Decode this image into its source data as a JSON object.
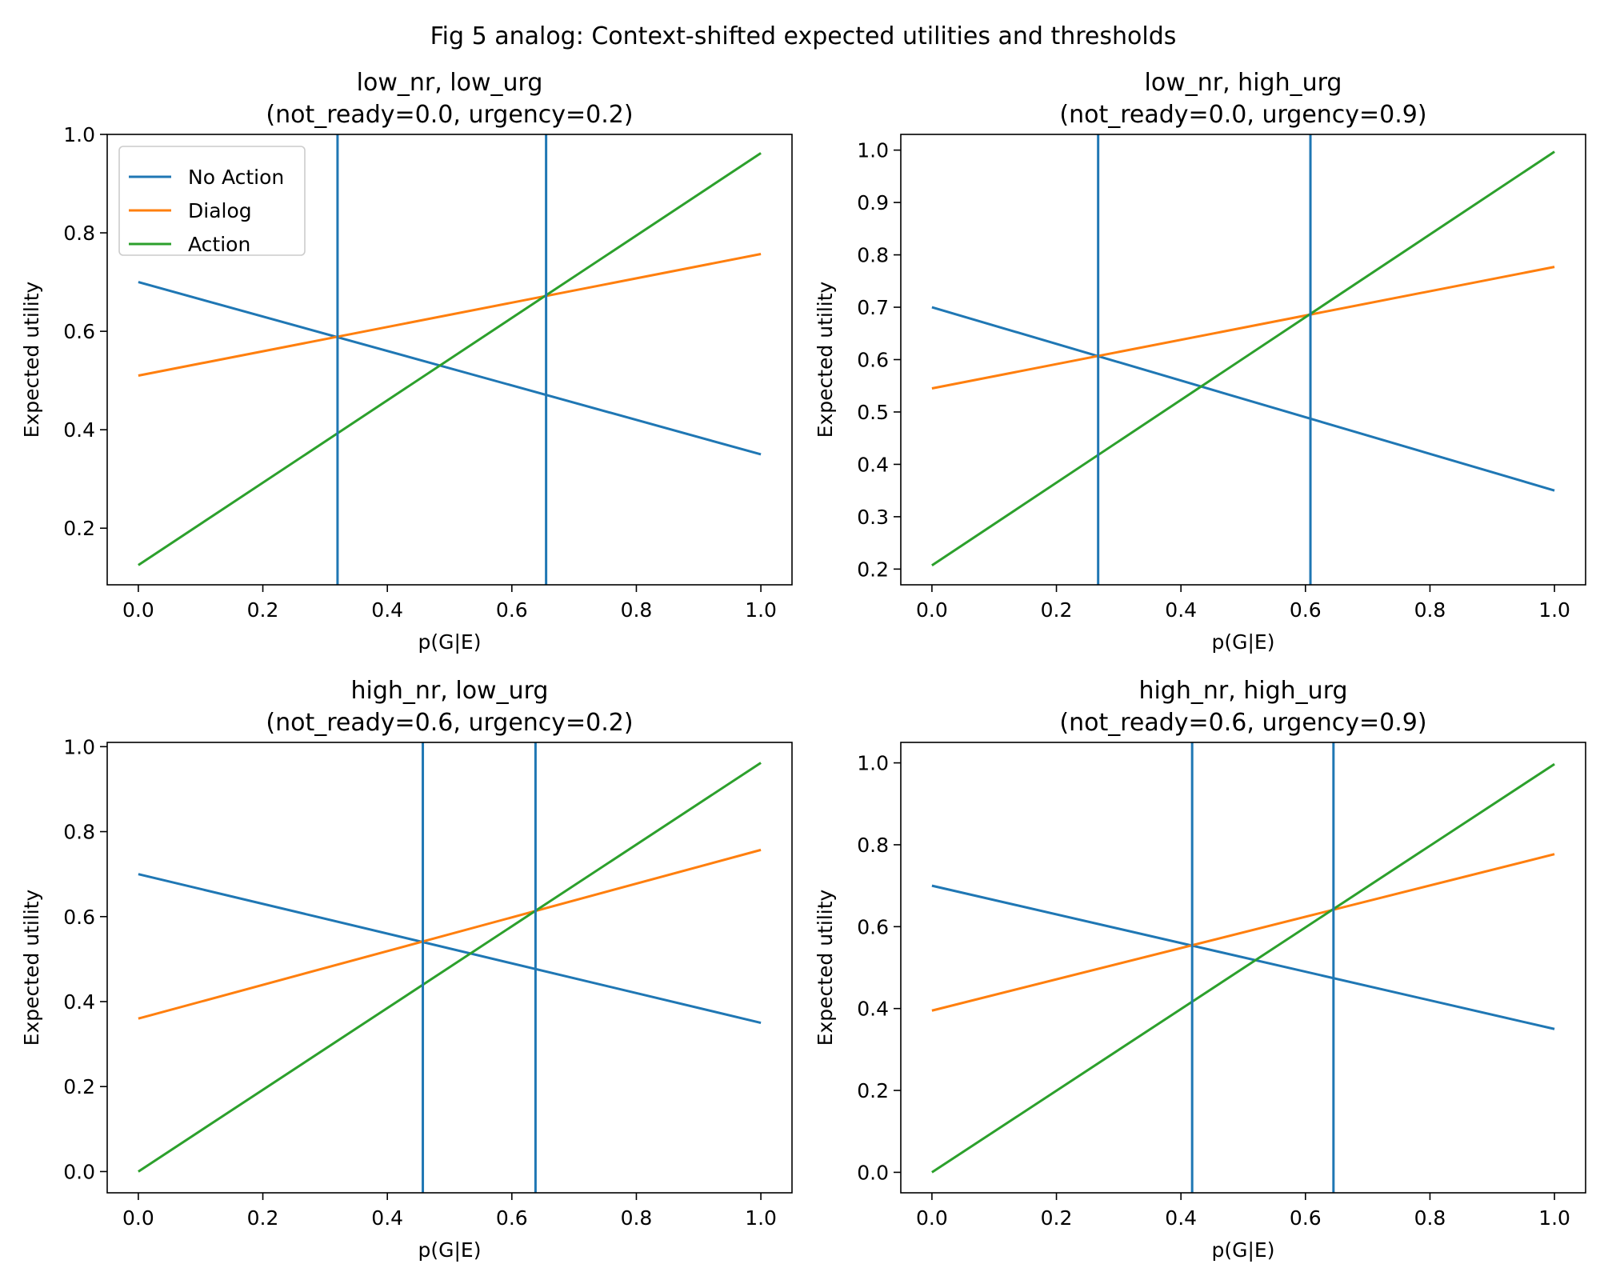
{
  "figure": {
    "title": "Fig 5 analog: Context-shifted expected utilities and thresholds"
  },
  "colors": {
    "no_action": "#1f77b4",
    "dialog": "#ff7f0e",
    "action": "#2ca02c",
    "threshold": "#1f77b4"
  },
  "chart_data": [
    {
      "type": "line",
      "title_line1": "low_nr, low_urg",
      "title_line2": "(not_ready=0.0, urgency=0.2)",
      "xlabel": "p(G|E)",
      "ylabel": "Expected utility",
      "xlim": [
        -0.05,
        1.05
      ],
      "ylim": [
        0.085,
        1.0
      ],
      "xticks": [
        "0.0",
        "0.2",
        "0.4",
        "0.6",
        "0.8",
        "1.0"
      ],
      "yticks": [
        "0.2",
        "0.4",
        "0.6",
        "0.8",
        "1.0"
      ],
      "legend": {
        "visible": true,
        "placement": "upper-left"
      },
      "series": [
        {
          "name": "No Action",
          "color_key": "no_action",
          "x": [
            0,
            1
          ],
          "y": [
            0.7,
            0.35
          ]
        },
        {
          "name": "Dialog",
          "color_key": "dialog",
          "x": [
            0,
            1
          ],
          "y": [
            0.51,
            0.757
          ]
        },
        {
          "name": "Action",
          "color_key": "action",
          "x": [
            0,
            1
          ],
          "y": [
            0.125,
            0.962
          ]
        }
      ],
      "thresholds": [
        0.32,
        0.655
      ]
    },
    {
      "type": "line",
      "title_line1": "low_nr, high_urg",
      "title_line2": "(not_ready=0.0, urgency=0.9)",
      "xlabel": "p(G|E)",
      "ylabel": "Expected utility",
      "xlim": [
        -0.05,
        1.05
      ],
      "ylim": [
        0.17,
        1.03
      ],
      "xticks": [
        "0.0",
        "0.2",
        "0.4",
        "0.6",
        "0.8",
        "1.0"
      ],
      "yticks": [
        "0.2",
        "0.3",
        "0.4",
        "0.5",
        "0.6",
        "0.7",
        "0.8",
        "0.9",
        "1.0"
      ],
      "legend": {
        "visible": false
      },
      "series": [
        {
          "name": "No Action",
          "color_key": "no_action",
          "x": [
            0,
            1
          ],
          "y": [
            0.7,
            0.35
          ]
        },
        {
          "name": "Dialog",
          "color_key": "dialog",
          "x": [
            0,
            1
          ],
          "y": [
            0.545,
            0.777
          ]
        },
        {
          "name": "Action",
          "color_key": "action",
          "x": [
            0,
            1
          ],
          "y": [
            0.207,
            0.997
          ]
        }
      ],
      "thresholds": [
        0.267,
        0.608
      ]
    },
    {
      "type": "line",
      "title_line1": "high_nr, low_urg",
      "title_line2": "(not_ready=0.6, urgency=0.2)",
      "xlabel": "p(G|E)",
      "ylabel": "Expected utility",
      "xlim": [
        -0.05,
        1.05
      ],
      "ylim": [
        -0.05,
        1.01
      ],
      "xticks": [
        "0.0",
        "0.2",
        "0.4",
        "0.6",
        "0.8",
        "1.0"
      ],
      "yticks": [
        "0.0",
        "0.2",
        "0.4",
        "0.6",
        "0.8",
        "1.0"
      ],
      "legend": {
        "visible": false
      },
      "series": [
        {
          "name": "No Action",
          "color_key": "no_action",
          "x": [
            0,
            1
          ],
          "y": [
            0.7,
            0.35
          ]
        },
        {
          "name": "Dialog",
          "color_key": "dialog",
          "x": [
            0,
            1
          ],
          "y": [
            0.36,
            0.757
          ]
        },
        {
          "name": "Action",
          "color_key": "action",
          "x": [
            0,
            1
          ],
          "y": [
            0.0,
            0.962
          ]
        }
      ],
      "thresholds": [
        0.457,
        0.638
      ]
    },
    {
      "type": "line",
      "title_line1": "high_nr, high_urg",
      "title_line2": "(not_ready=0.6, urgency=0.9)",
      "xlabel": "p(G|E)",
      "ylabel": "Expected utility",
      "xlim": [
        -0.05,
        1.05
      ],
      "ylim": [
        -0.05,
        1.05
      ],
      "xticks": [
        "0.0",
        "0.2",
        "0.4",
        "0.6",
        "0.8",
        "1.0"
      ],
      "yticks": [
        "0.0",
        "0.2",
        "0.4",
        "0.6",
        "0.8",
        "1.0"
      ],
      "legend": {
        "visible": false
      },
      "series": [
        {
          "name": "No Action",
          "color_key": "no_action",
          "x": [
            0,
            1
          ],
          "y": [
            0.7,
            0.35
          ]
        },
        {
          "name": "Dialog",
          "color_key": "dialog",
          "x": [
            0,
            1
          ],
          "y": [
            0.395,
            0.777
          ]
        },
        {
          "name": "Action",
          "color_key": "action",
          "x": [
            0,
            1
          ],
          "y": [
            0.0,
            0.997
          ]
        }
      ],
      "thresholds": [
        0.418,
        0.645
      ]
    }
  ]
}
